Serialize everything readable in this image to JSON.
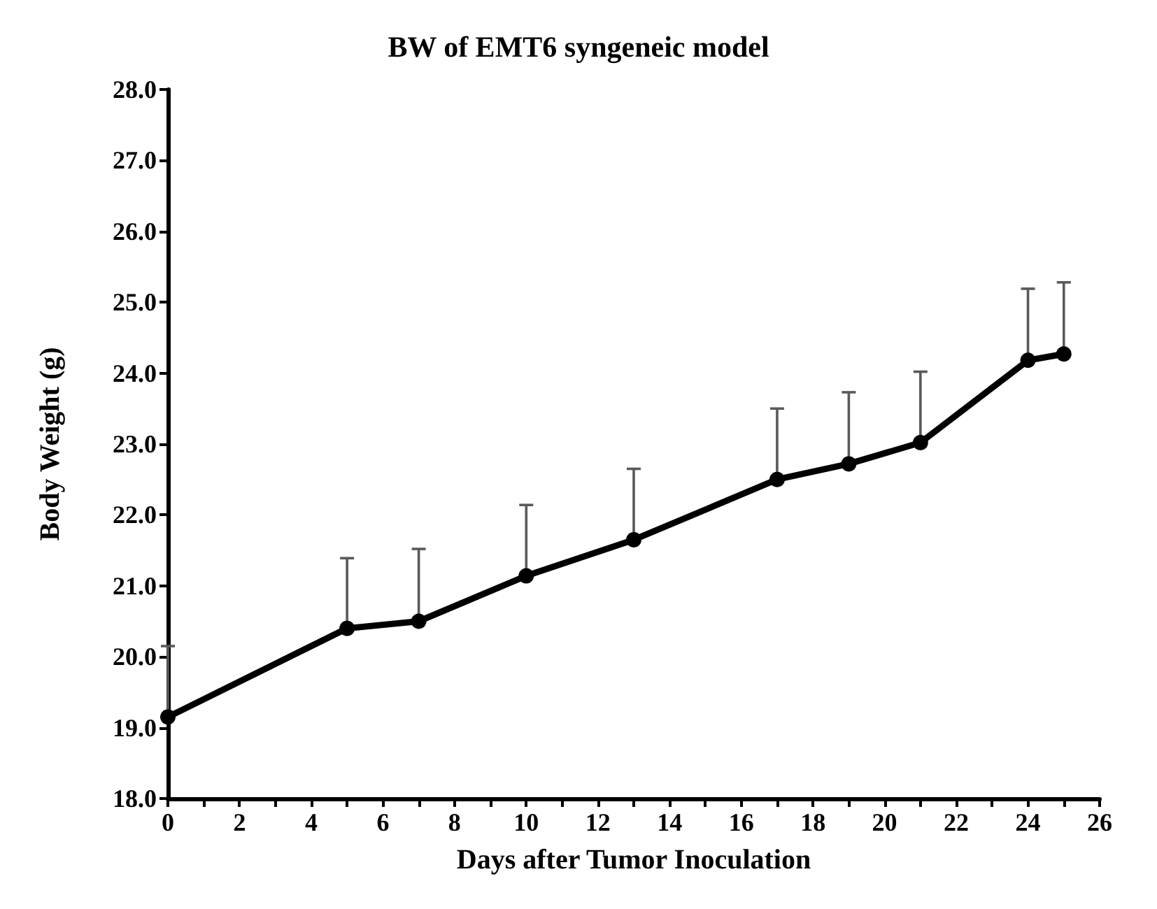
{
  "chart_data": {
    "type": "line",
    "title": "BW of EMT6 syngeneic model",
    "xlabel": "Days after Tumor Inoculation",
    "ylabel": "Body Weight (g)",
    "x": [
      0,
      5,
      7,
      10,
      13,
      17,
      19,
      21,
      24,
      25
    ],
    "values": [
      19.15,
      20.4,
      20.5,
      21.14,
      21.65,
      22.5,
      22.72,
      23.02,
      24.18,
      24.27
    ],
    "errors": [
      [
        19.15,
        20.15
      ],
      [
        20.4,
        21.39
      ],
      [
        20.5,
        21.52
      ],
      [
        21.14,
        22.14
      ],
      [
        21.65,
        22.65
      ],
      [
        22.5,
        23.5
      ],
      [
        22.72,
        23.73
      ],
      [
        23.02,
        24.02
      ],
      [
        24.18,
        25.19
      ],
      [
        24.27,
        25.28
      ]
    ],
    "color": "#000000",
    "marker": "circle",
    "line_style": "solid",
    "xlim": [
      0,
      26
    ],
    "xticks": [
      0,
      {
        "value": 1,
        "label": null
      },
      2,
      {
        "value": 3,
        "label": null
      },
      4,
      {
        "value": 5,
        "label": null
      },
      6,
      {
        "value": 7,
        "label": null
      },
      8,
      {
        "value": 9,
        "label": null
      },
      10,
      {
        "value": 11,
        "label": null
      },
      12,
      {
        "value": 13,
        "label": null
      },
      14,
      {
        "value": 15,
        "label": null
      },
      16,
      {
        "value": 17,
        "label": null
      },
      18,
      {
        "value": 19,
        "label": null
      },
      20,
      {
        "value": 21,
        "label": null
      },
      22,
      {
        "value": 23,
        "label": null
      },
      24,
      {
        "value": 25,
        "label": null
      },
      26
    ],
    "ylim": [
      18,
      28
    ],
    "yticks": [
      {
        "value": 18,
        "label": "18.0"
      },
      {
        "value": 19,
        "label": "19.0"
      },
      {
        "value": 20,
        "label": "20.0"
      },
      {
        "value": 21,
        "label": "21.0"
      },
      {
        "value": 22,
        "label": "22.0"
      },
      {
        "value": 23,
        "label": "23.0"
      },
      {
        "value": 24,
        "label": "24.0"
      },
      {
        "value": 25,
        "label": "25.0"
      },
      {
        "value": 26,
        "label": "26.0"
      },
      {
        "value": 27,
        "label": "27.0"
      },
      {
        "value": 28,
        "label": "28.0"
      }
    ]
  }
}
